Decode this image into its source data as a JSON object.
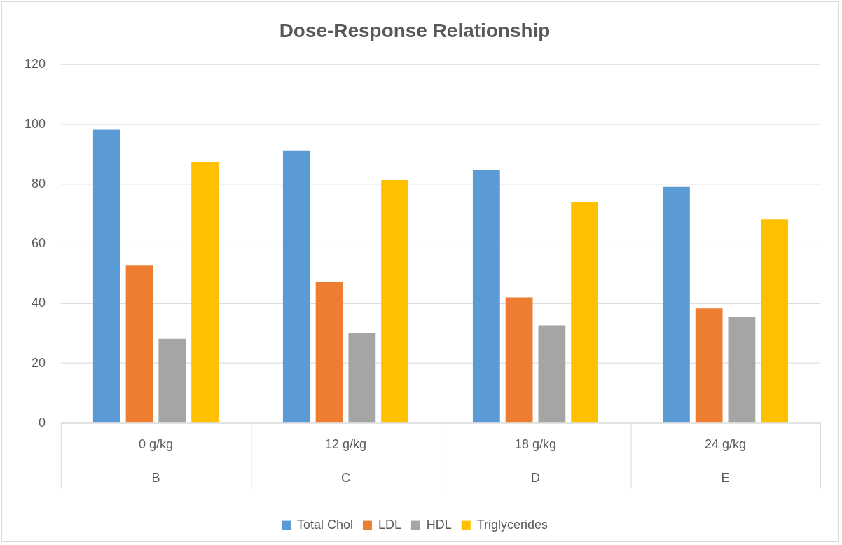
{
  "chart_data": {
    "type": "bar",
    "title": "Dose-Response Relationship",
    "categories": [
      "0 g/kg",
      "12 g/kg",
      "18 g/kg",
      "24 g/kg"
    ],
    "series": [
      {
        "name": "Total Chol",
        "color": "#5b9bd5",
        "values": [
          98.4,
          91.3,
          84.7,
          79.1
        ]
      },
      {
        "name": "LDL",
        "color": "#ed7d31",
        "values": [
          52.7,
          47.3,
          42.1,
          38.4
        ]
      },
      {
        "name": "HDL",
        "color": "#a5a5a5",
        "values": [
          28.2,
          30.1,
          32.7,
          35.5
        ]
      },
      {
        "name": "Triglycerides",
        "color": "#ffc000",
        "values": [
          87.5,
          81.4,
          74.1,
          68.2
        ]
      }
    ],
    "annotations": [
      "B",
      "C",
      "D",
      "E"
    ],
    "ylim": [
      0,
      120
    ],
    "yticks": [
      0,
      20,
      40,
      60,
      80,
      100,
      120
    ],
    "grid": "y",
    "legend": "bottom"
  }
}
